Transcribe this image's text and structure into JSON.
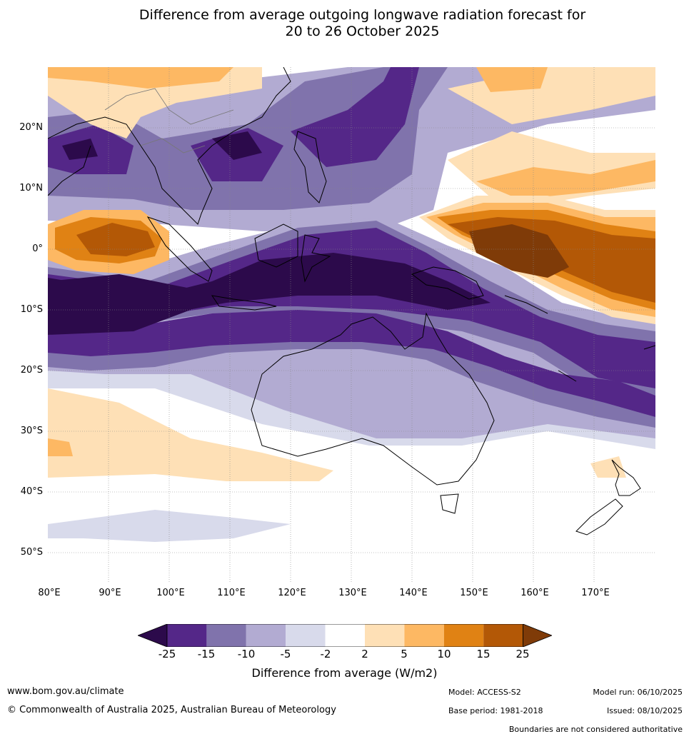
{
  "title": {
    "line1": "Difference from average outgoing longwave radiation forecast for",
    "line2": "20 to 26 October 2025"
  },
  "map": {
    "lat_labels": [
      "20°N",
      "10°N",
      "0°",
      "10°S",
      "20°S",
      "30°S",
      "40°S",
      "50°S"
    ],
    "lon_labels": [
      "80°E",
      "90°E",
      "100°E",
      "110°E",
      "120°E",
      "130°E",
      "140°E",
      "150°E",
      "160°E",
      "170°E"
    ],
    "extent": {
      "lon": [
        80,
        180
      ],
      "lat": [
        -55,
        30
      ]
    }
  },
  "colorbar": {
    "title": "Difference from average (W/m2)",
    "tick_labels": [
      "-25",
      "-15",
      "-10",
      "-5",
      "-2",
      "2",
      "5",
      "10",
      "15",
      "25"
    ],
    "colors": [
      "#2c0a4b",
      "#542788",
      "#8073ac",
      "#b2abd2",
      "#d8daeb",
      "#ffffff",
      "#fee0b6",
      "#fdb863",
      "#e08214",
      "#b35806",
      "#7f3b08"
    ]
  },
  "footer": {
    "website": "www.bom.gov.au/climate",
    "copyright": "© Commonwealth of Australia 2025, Australian Bureau of Meteorology",
    "model": "Model: ACCESS-S2",
    "base_period": "Base period: 1981-2018",
    "model_run": "Model run: 06/10/2025",
    "issued": "Issued: 08/10/2025",
    "disclaimer": "Boundaries are not considered authoritative"
  }
}
